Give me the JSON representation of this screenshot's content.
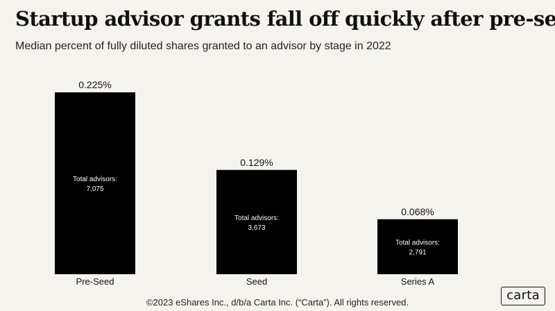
{
  "header": {
    "title": "Startup advisor grants fall off quickly after pre-seed",
    "subtitle": "Median percent of fully diluted shares granted to an advisor by stage in 2022"
  },
  "chart_data": {
    "type": "bar",
    "categories": [
      "Pre-Seed",
      "Seed",
      "Series A"
    ],
    "values": [
      0.225,
      0.129,
      0.068
    ],
    "value_labels": [
      "0.225%",
      "0.129%",
      "0.068%"
    ],
    "annotations": [
      {
        "label": "Total advisors:",
        "value": "7,075"
      },
      {
        "label": "Total advisors:",
        "value": "3,673"
      },
      {
        "label": "Total advisors:",
        "value": "2,791"
      }
    ],
    "ylim": [
      0,
      0.225
    ],
    "grid": false,
    "bar_color": "#000000",
    "background_color": "#f4f3ee"
  },
  "footer": {
    "copyright": "©2023 eShares Inc., d/b/a Carta Inc. (“Carta”). All rights reserved.",
    "logo_text": "carta"
  }
}
